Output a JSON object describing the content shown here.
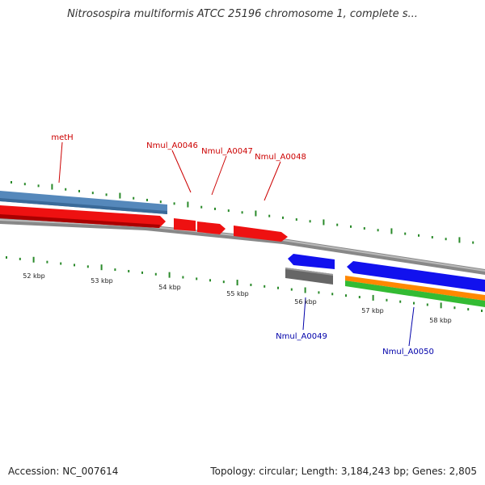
{
  "title": "Nitrosospira multiformis ATCC 25196 chromosome 1, complete s...",
  "footer": {
    "accession_label": "Accession:",
    "accession": "NC_007614",
    "topology_label": "Topology:",
    "topology": "circular",
    "length_label": "Length:",
    "length": "3,184,243 bp",
    "genes_label": "Genes:",
    "genes": "2,805"
  },
  "scale_labels": [
    "52 kbp",
    "53 kbp",
    "54 kbp",
    "55 kbp",
    "56 kbp",
    "57 kbp",
    "58 kbp"
  ],
  "genes": [
    {
      "name": "metH",
      "color": "#cc0000"
    },
    {
      "name": "Nmul_A0046",
      "color": "#cc0000"
    },
    {
      "name": "Nmul_A0047",
      "color": "#cc0000"
    },
    {
      "name": "Nmul_A0048",
      "color": "#cc0000"
    },
    {
      "name": "Nmul_A0049",
      "color": "#0000aa"
    },
    {
      "name": "Nmul_A0050",
      "color": "#0000aa"
    }
  ],
  "colors": {
    "background": "#ffffff",
    "tick": "#2a8a2a",
    "backbone": "#888888",
    "cds_forward": "#ee1111",
    "cds_reverse": "#1111ee",
    "gene_steelblue": "#5588bb",
    "gene_gray": "#666666",
    "orange": "#ff8800",
    "green": "#33bb33"
  }
}
